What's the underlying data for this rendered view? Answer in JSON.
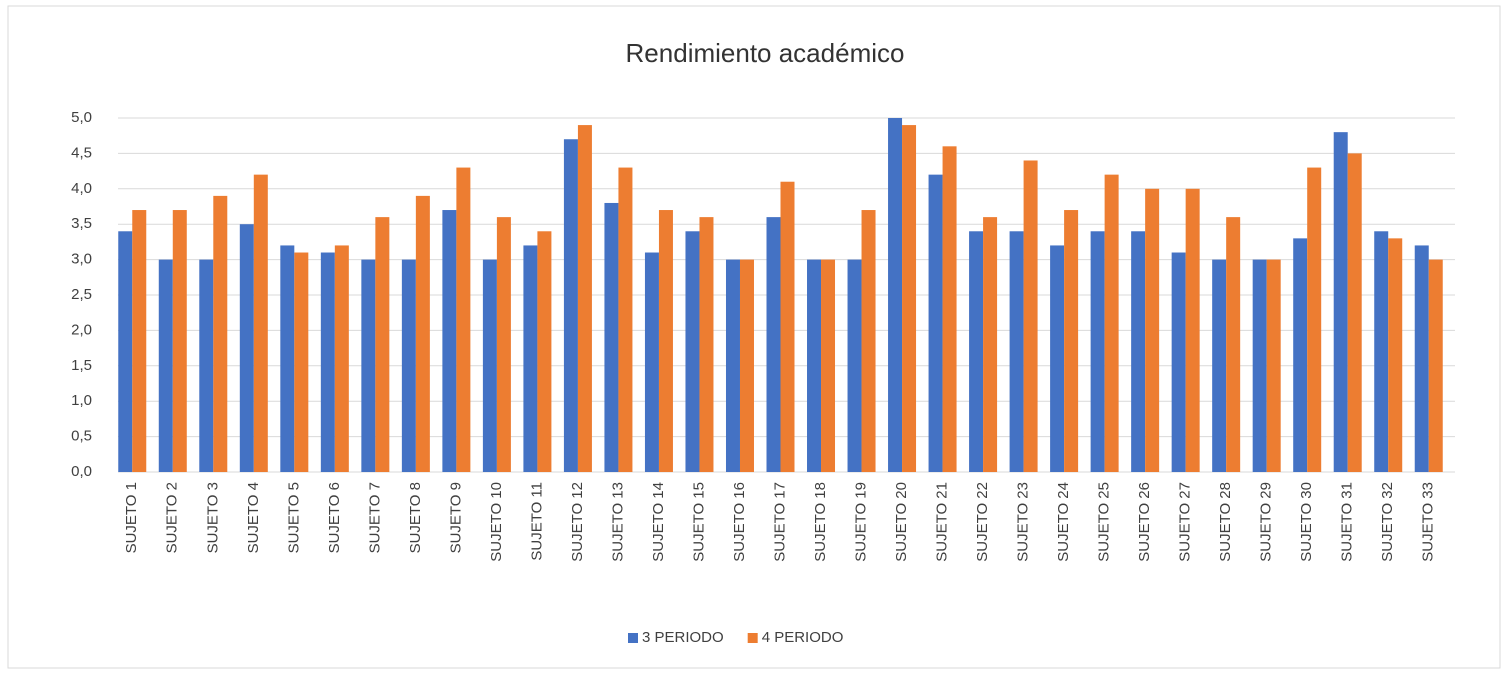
{
  "chart_data": {
    "type": "bar",
    "title": "Rendimiento académico",
    "categories": [
      "SUJETO 1",
      "SUJETO 2",
      "SUJETO 3",
      "SUJETO 4",
      "SUJETO 5",
      "SUJETO 6",
      "SUJETO 7",
      "SUJETO 8",
      "SUJETO 9",
      "SUJETO 10",
      "SUJETO 11",
      "SUJETO 12",
      "SUJETO 13",
      "SUJETO 14",
      "SUJETO 15",
      "SUJETO 16",
      "SUJETO 17",
      "SUJETO 18",
      "SUJETO 19",
      "SUJETO 20",
      "SUJETO 21",
      "SUJETO 22",
      "SUJETO 23",
      "SUJETO 24",
      "SUJETO 25",
      "SUJETO 26",
      "SUJETO 27",
      "SUJETO 28",
      "SUJETO 29",
      "SUJETO 30",
      "SUJETO 31",
      "SUJETO 32",
      "SUJETO 33"
    ],
    "series": [
      {
        "name": "3 PERIODO",
        "color": "#4472c4",
        "values": [
          3.4,
          3.0,
          3.0,
          3.5,
          3.2,
          3.1,
          3.0,
          3.0,
          3.7,
          3.0,
          3.2,
          4.7,
          3.8,
          3.1,
          3.4,
          3.0,
          3.6,
          3.0,
          3.0,
          5.0,
          4.2,
          3.4,
          3.4,
          3.2,
          3.4,
          3.4,
          3.1,
          3.0,
          3.0,
          3.3,
          4.8,
          3.4,
          3.2
        ]
      },
      {
        "name": "4 PERIODO",
        "color": "#ed7d31",
        "values": [
          3.7,
          3.7,
          3.9,
          4.2,
          3.1,
          3.2,
          3.6,
          3.9,
          4.3,
          3.6,
          3.4,
          4.9,
          4.3,
          3.7,
          3.6,
          3.0,
          4.1,
          3.0,
          3.7,
          4.9,
          4.6,
          3.6,
          4.4,
          3.7,
          4.2,
          4.0,
          4.0,
          3.6,
          3.0,
          4.3,
          4.5,
          3.3,
          3.0
        ]
      }
    ],
    "ylim": [
      0,
      5
    ],
    "yticks": [
      {
        "value": 0,
        "label": "0,0"
      },
      {
        "value": 0.5,
        "label": "0,5"
      },
      {
        "value": 1,
        "label": "1,0"
      },
      {
        "value": 1.5,
        "label": "1,5"
      },
      {
        "value": 2,
        "label": "2,0"
      },
      {
        "value": 2.5,
        "label": "2,5"
      },
      {
        "value": 3,
        "label": "3,0"
      },
      {
        "value": 3.5,
        "label": "3,5"
      },
      {
        "value": 4,
        "label": "4,0"
      },
      {
        "value": 4.5,
        "label": "4,5"
      },
      {
        "value": 5,
        "label": "5,0"
      }
    ],
    "grid": true,
    "legend": "bottom"
  }
}
